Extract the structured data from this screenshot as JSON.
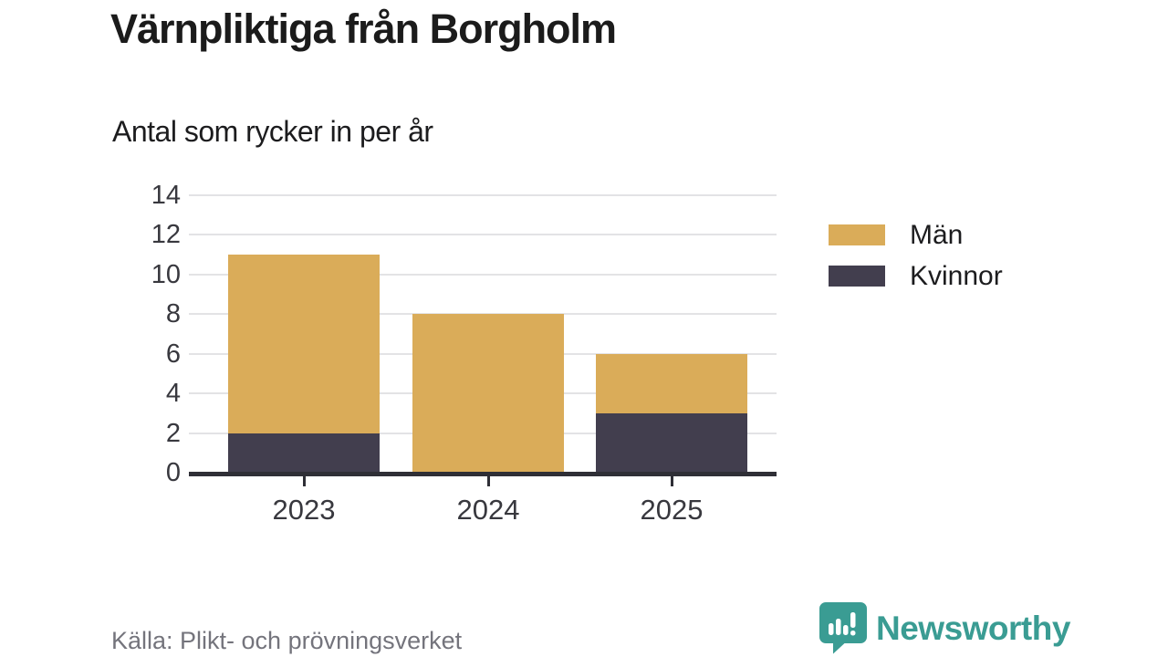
{
  "header": {
    "title": "Värnpliktiga från Borgholm",
    "subtitle": "Antal som rycker in per år"
  },
  "chart_data": {
    "type": "bar",
    "stacked": true,
    "categories": [
      "2023",
      "2024",
      "2025"
    ],
    "series": [
      {
        "name": "Kvinnor",
        "color": "#423E4E",
        "values": [
          2,
          0,
          3
        ]
      },
      {
        "name": "Män",
        "color": "#DAAC59",
        "values": [
          9,
          8,
          3
        ]
      }
    ],
    "stack_order": "bottom-to-top",
    "totals": [
      11,
      8,
      6
    ],
    "title": "Värnpliktiga från Borgholm",
    "subtitle": "Antal som rycker in per år",
    "xlabel": "",
    "ylabel": "",
    "ylim": [
      0,
      14
    ],
    "yticks": [
      0,
      2,
      4,
      6,
      8,
      10,
      12,
      14
    ],
    "grid": true,
    "legend_position": "right"
  },
  "legend": {
    "items": [
      {
        "label": "Män",
        "color": "#DAAC59"
      },
      {
        "label": "Kvinnor",
        "color": "#423E4E"
      }
    ]
  },
  "footer": {
    "source": "Källa: Plikt- och prövningsverket",
    "brand_name": "Newsworthy"
  },
  "colors": {
    "men": "#DAAC59",
    "women": "#423E4E",
    "gridline": "#e3e3e5",
    "axis": "#2f2f36",
    "tick_text": "#38383e",
    "title_text": "#1b1b1b",
    "source_text": "#74747c",
    "brand_teal": "#3A9C93",
    "background": "#ffffff"
  }
}
